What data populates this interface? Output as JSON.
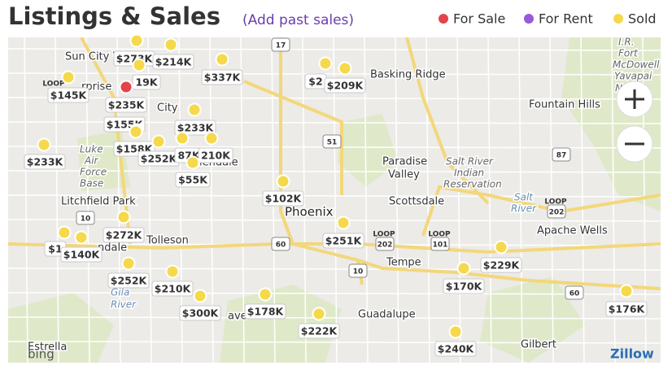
{
  "header": {
    "title": "Listings & Sales",
    "link": "(Add past sales)"
  },
  "legend": [
    {
      "label": "For Sale",
      "color": "#e5434b"
    },
    {
      "label": "For Rent",
      "color": "#9b59d9"
    },
    {
      "label": "Sold",
      "color": "#f5d94a"
    }
  ],
  "places": [
    "Sun City W",
    "rprise",
    "City",
    "Luke",
    "Air",
    "Force",
    "Base",
    "Litchfield Park",
    "Tolleson",
    "ndale",
    "lendale",
    "Phoenix",
    "Paradise",
    "Valley",
    "Scottsdale",
    "Salt River",
    "Indian",
    "Reservation",
    "Tempe",
    "Guadalupe",
    "Gilbert",
    "Apache Wells",
    "Fountain Hills",
    "Basking Ridge",
    "I.R.",
    "Fort",
    "McDowell",
    "Yavapai",
    "Natio",
    "Gila",
    "River",
    "Estrella",
    "ave",
    "Salt",
    "River"
  ],
  "shields": [
    "17",
    "51",
    "87",
    "60",
    "10",
    "202",
    "101",
    "202",
    "60",
    "10",
    "LOOP",
    "LOOP",
    "LOOP",
    "LOOP"
  ],
  "pins": [
    {
      "label": "$273K",
      "status": "Sold"
    },
    {
      "label": "$214K",
      "status": "Sold"
    },
    {
      "label": "$337K",
      "status": "Sold"
    },
    {
      "label": "19K",
      "status": "Sold"
    },
    {
      "label": "$145K",
      "status": "Sold"
    },
    {
      "label": "$235K",
      "status": "For Sale"
    },
    {
      "label": "$233K",
      "status": "Sold"
    },
    {
      "label": "$155K",
      "status": "Sold"
    },
    {
      "label": "$158K",
      "status": "Sold"
    },
    {
      "label": "$233K",
      "status": "Sold"
    },
    {
      "label": "$252K",
      "status": "Sold"
    },
    {
      "label": "87K",
      "status": "Sold"
    },
    {
      "label": "210K",
      "status": "Sold"
    },
    {
      "label": "$55K",
      "status": "Sold"
    },
    {
      "label": "$102K",
      "status": "Sold"
    },
    {
      "label": "$272K",
      "status": "Sold"
    },
    {
      "label": "$1",
      "status": "Sold"
    },
    {
      "label": "$140K",
      "status": "Sold"
    },
    {
      "label": "$251K",
      "status": "Sold"
    },
    {
      "label": "$252K",
      "status": "Sold"
    },
    {
      "label": "$210K",
      "status": "Sold"
    },
    {
      "label": "$300K",
      "status": "Sold"
    },
    {
      "label": "$178K",
      "status": "Sold"
    },
    {
      "label": "$222K",
      "status": "Sold"
    },
    {
      "label": "$240K",
      "status": "Sold"
    },
    {
      "label": "$170K",
      "status": "Sold"
    },
    {
      "label": "$229K",
      "status": "Sold"
    },
    {
      "label": "$176K",
      "status": "Sold"
    },
    {
      "label": "$2",
      "status": "Sold"
    },
    {
      "label": "$209K",
      "status": "Sold"
    }
  ],
  "attribution": [
    "bing",
    "Zillow"
  ]
}
